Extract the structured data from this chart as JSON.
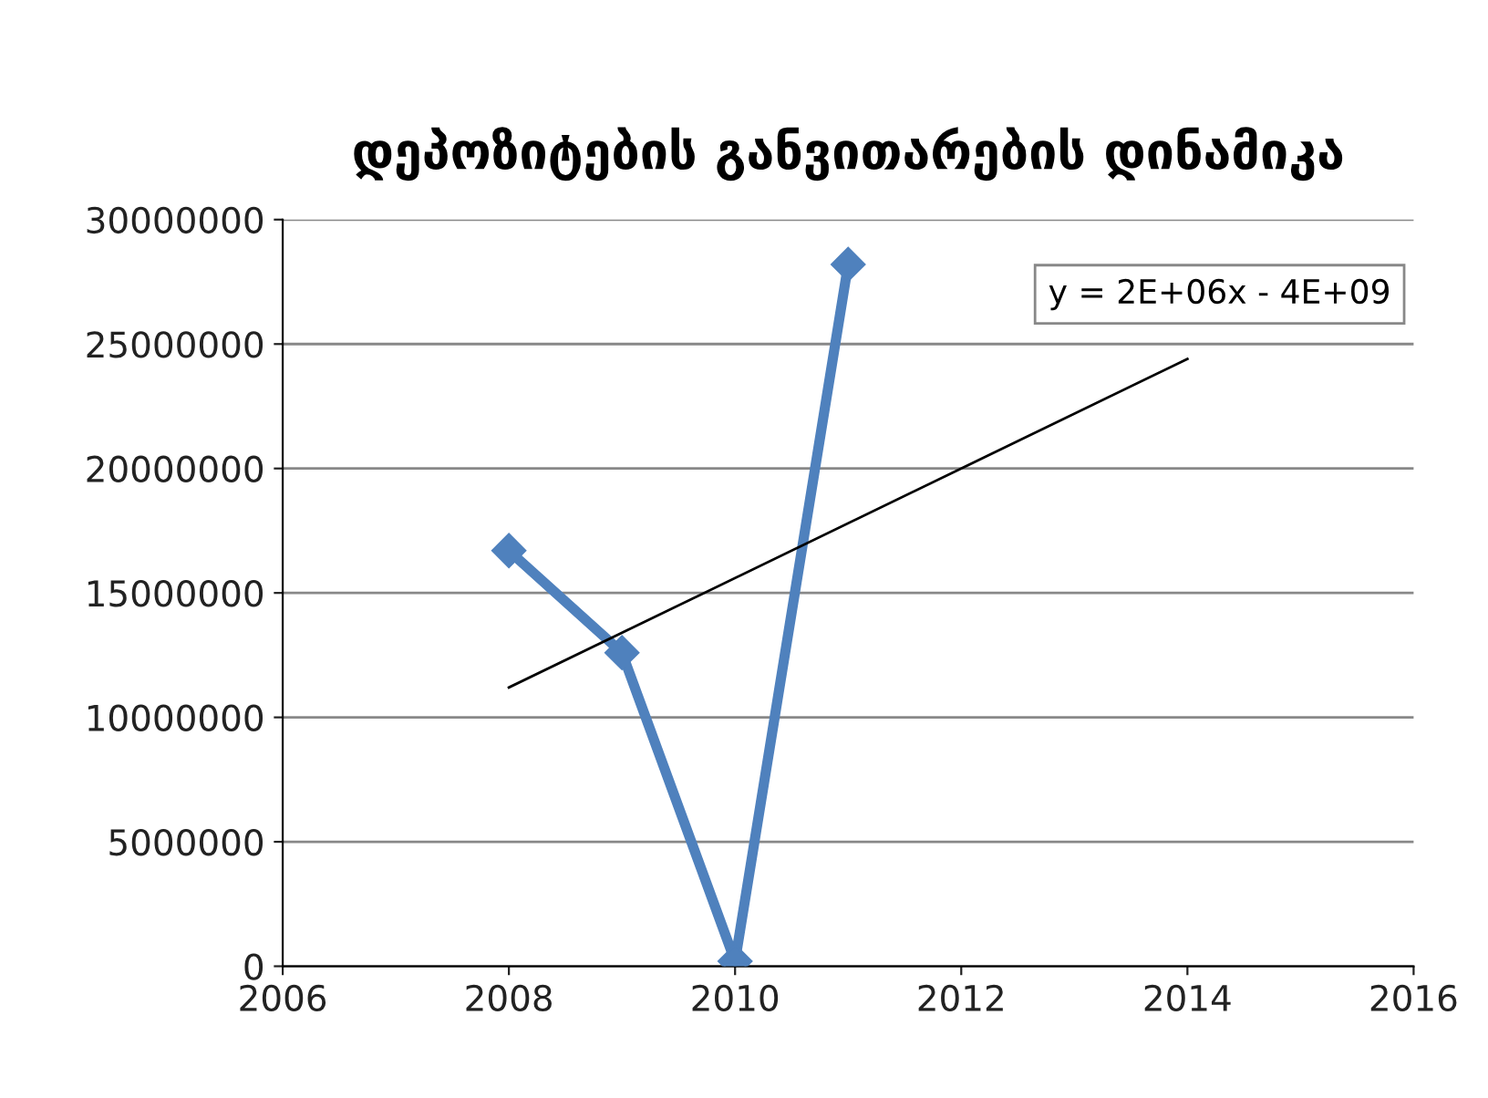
{
  "chart_data": {
    "type": "line",
    "title": "დეპოზიტების განვითარების დინამიკა",
    "series": [
      {
        "color": "#4f81bd",
        "x": [
          2008,
          2009,
          2010,
          2011
        ],
        "values": [
          16700000,
          12600000,
          200000,
          28200000
        ],
        "marker": "diamond"
      },
      {
        "color": "#000000",
        "x": [
          2008,
          2014
        ],
        "values": [
          11200000,
          24400000
        ],
        "marker": "none"
      }
    ],
    "annotations": [
      "y = 2E+06x - 4E+09"
    ],
    "xlim": [
      2006,
      2016
    ],
    "xticks": [
      2006,
      2008,
      2010,
      2012,
      2014,
      2016
    ],
    "ylim": [
      0,
      30000000
    ],
    "yticks": [
      0,
      5000000,
      10000000,
      15000000,
      20000000,
      25000000,
      30000000
    ],
    "grid": "y",
    "legend": false,
    "line_style": "solid"
  }
}
